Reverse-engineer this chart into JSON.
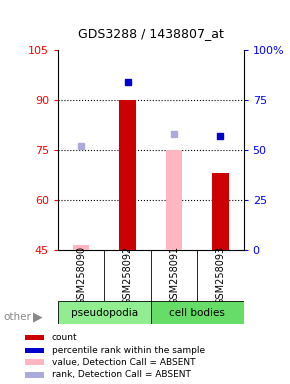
{
  "title": "GDS3288 / 1438807_at",
  "samples": [
    "GSM258090",
    "GSM258092",
    "GSM258091",
    "GSM258093"
  ],
  "ylim": [
    45,
    105
  ],
  "y_left_ticks": [
    45,
    60,
    75,
    90,
    105
  ],
  "y_right_ticks": [
    0,
    25,
    50,
    75,
    100
  ],
  "y_right_labels": [
    "0",
    "25",
    "50",
    "75",
    "100%"
  ],
  "dotted_lines": [
    60,
    75,
    90
  ],
  "bar_values": {
    "GSM258090": {
      "value": null,
      "rank": null,
      "absent_value": 46.5,
      "absent_rank": 52
    },
    "GSM258092": {
      "value": 90,
      "rank": 84,
      "absent_value": null,
      "absent_rank": null
    },
    "GSM258091": {
      "value": null,
      "rank": null,
      "absent_value": 75,
      "absent_rank": 58
    },
    "GSM258093": {
      "value": 68,
      "rank": 57,
      "absent_value": null,
      "absent_rank": null
    }
  },
  "red_color": "#CC0000",
  "pink_color": "#FFB6C1",
  "blue_color": "#0000CC",
  "lightblue_color": "#AAAADD",
  "marker_size": 5,
  "background_color": "#FFFFFF",
  "pseudopodia_color": "#90EE90",
  "cellbodies_color": "#66DD66",
  "sample_label_bg": "#D0D0D0",
  "group_labels": [
    "pseudopodia",
    "cell bodies"
  ],
  "legend_items": [
    {
      "color": "#CC0000",
      "label": "count"
    },
    {
      "color": "#0000CC",
      "label": "percentile rank within the sample"
    },
    {
      "color": "#FFB6C1",
      "label": "value, Detection Call = ABSENT"
    },
    {
      "color": "#AAAADD",
      "label": "rank, Detection Call = ABSENT"
    }
  ]
}
